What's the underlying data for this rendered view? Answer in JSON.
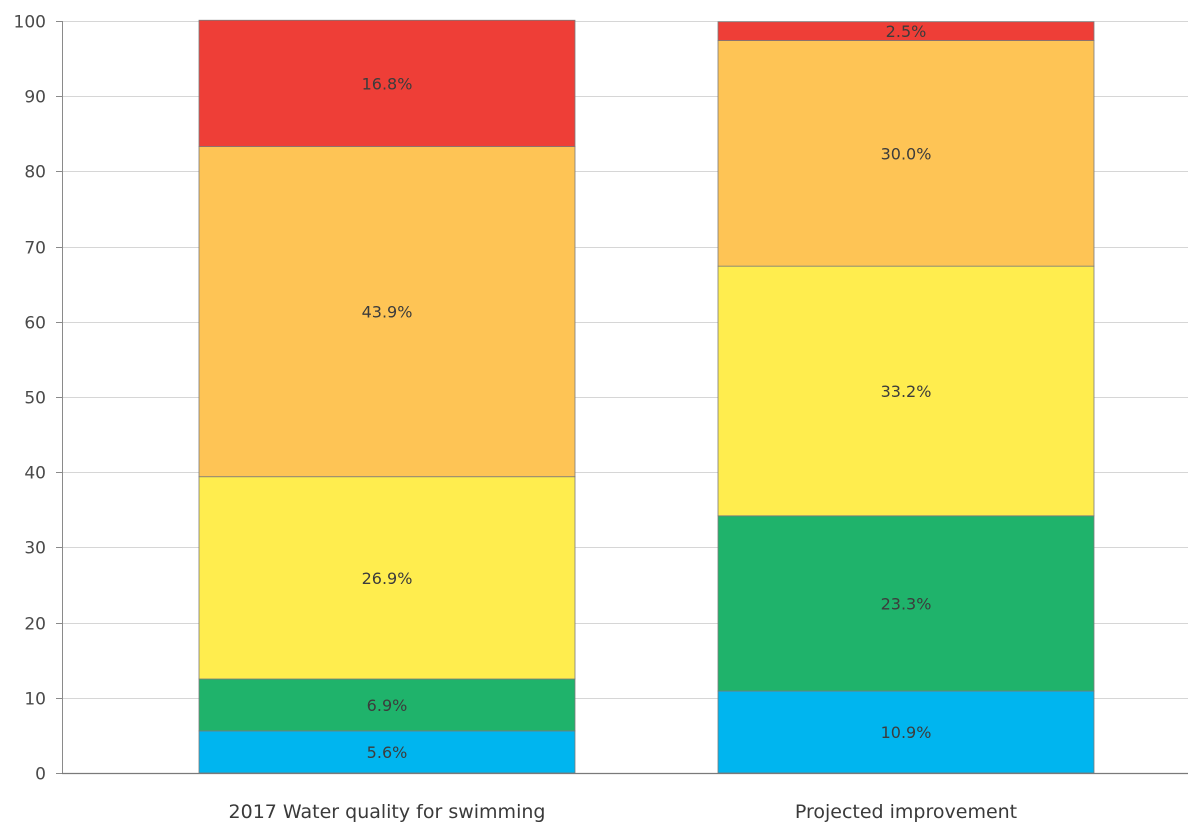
{
  "chart_data": {
    "type": "bar",
    "stacked": true,
    "title": "",
    "xlabel": "",
    "ylabel": "",
    "ylim": [
      0,
      100
    ],
    "yticks": [
      0,
      10,
      20,
      30,
      40,
      50,
      60,
      70,
      80,
      90,
      100
    ],
    "grid": true,
    "categories": [
      "2017 Water quality for swimming",
      "Projected improvement"
    ],
    "series": [
      {
        "color": "#00b5ef",
        "values": [
          5.6,
          10.9
        ],
        "labels": [
          "5.6%",
          "10.9%"
        ]
      },
      {
        "color": "#1fb36b",
        "values": [
          6.9,
          23.3
        ],
        "labels": [
          "6.9%",
          "23.3%"
        ]
      },
      {
        "color": "#ffed4e",
        "values": [
          26.9,
          33.2
        ],
        "labels": [
          "26.9%",
          "33.2%"
        ]
      },
      {
        "color": "#fec455",
        "values": [
          43.9,
          30.0
        ],
        "labels": [
          "43.9%",
          "30.0%"
        ]
      },
      {
        "color": "#ee3e37",
        "values": [
          16.8,
          2.5
        ],
        "labels": [
          "16.8%",
          "2.5%"
        ]
      }
    ]
  }
}
